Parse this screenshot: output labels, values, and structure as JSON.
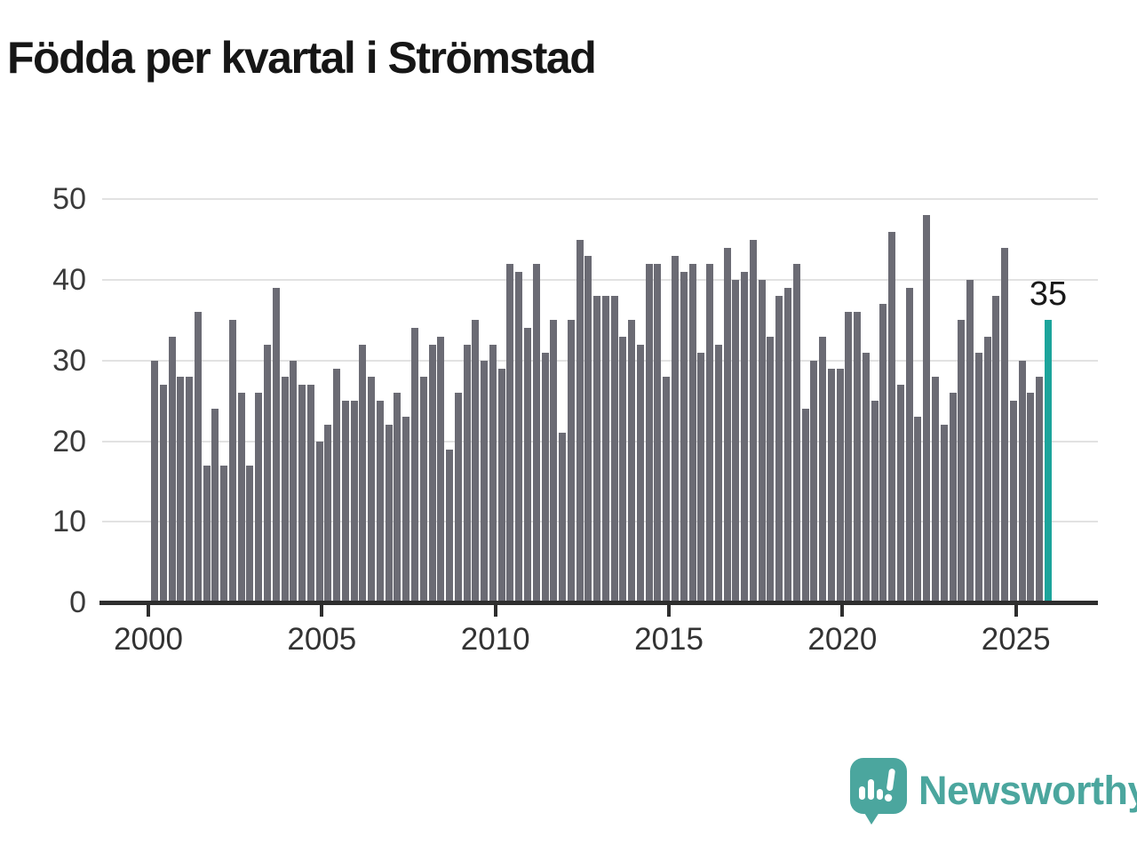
{
  "title": "Födda per kvartal i Strömstad",
  "chart_data": {
    "type": "bar",
    "title": "Födda per kvartal i Strömstad",
    "frequency": "quarterly",
    "start": {
      "year": 2000,
      "quarter": 1
    },
    "end": {
      "year": 2025,
      "quarter": 4
    },
    "values": [
      30,
      27,
      33,
      28,
      28,
      36,
      17,
      24,
      17,
      35,
      26,
      17,
      26,
      32,
      39,
      28,
      30,
      27,
      27,
      20,
      22,
      29,
      25,
      25,
      32,
      28,
      25,
      22,
      26,
      23,
      34,
      28,
      32,
      33,
      19,
      26,
      32,
      35,
      30,
      32,
      29,
      42,
      41,
      34,
      42,
      31,
      35,
      21,
      35,
      45,
      43,
      38,
      38,
      38,
      33,
      35,
      32,
      42,
      42,
      28,
      43,
      41,
      42,
      31,
      42,
      32,
      44,
      40,
      41,
      45,
      40,
      33,
      38,
      39,
      42,
      24,
      30,
      33,
      29,
      29,
      36,
      36,
      31,
      25,
      37,
      46,
      27,
      39,
      23,
      48,
      28,
      22,
      26,
      35,
      40,
      31,
      33,
      38,
      44,
      25,
      30,
      26,
      28,
      35
    ],
    "x_tick_labels": [
      "2000",
      "2005",
      "2010",
      "2015",
      "2020",
      "2025"
    ],
    "x_tick_years": [
      2000,
      2005,
      2010,
      2015,
      2020,
      2025
    ],
    "y_ticks": [
      0,
      10,
      20,
      30,
      40,
      50
    ],
    "ylim": [
      0,
      50
    ],
    "grid": "horizontal",
    "legend": "none",
    "bar_color": "#6B6B74",
    "highlight": {
      "position": "last",
      "value": 35,
      "label": "35",
      "color": "#1CA49B"
    }
  },
  "footer": {
    "brand": "Newsworthy",
    "brand_color": "#4BA69E",
    "logo_icon": "speech-bubble-bar-chart-exclamation"
  }
}
